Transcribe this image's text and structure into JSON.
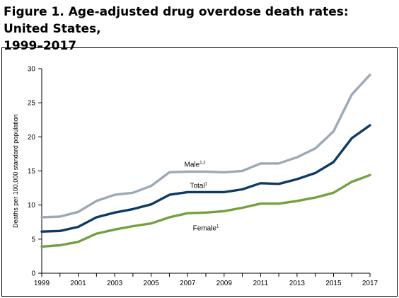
{
  "figure": {
    "title_line1": "Figure 1. Age-adjusted drug overdose death rates: United States,",
    "title_line2": "1999–2017"
  },
  "chart_data": {
    "type": "line",
    "title": "Figure 1. Age-adjusted drug overdose death rates: United States, 1999–2017",
    "xlabel": "",
    "ylabel": "Deaths per 100,000 standard population",
    "x": [
      1999,
      2000,
      2001,
      2002,
      2003,
      2004,
      2005,
      2006,
      2007,
      2008,
      2009,
      2010,
      2011,
      2012,
      2013,
      2014,
      2015,
      2016,
      2017
    ],
    "x_tick_labels": [
      "1999",
      "2001",
      "2003",
      "2005",
      "2007",
      "2009",
      "2011",
      "2013",
      "2015",
      "2017"
    ],
    "xlim": [
      1999,
      2017
    ],
    "y_ticks": [
      0,
      5,
      10,
      15,
      20,
      25,
      30
    ],
    "ylim": [
      0,
      30
    ],
    "grid": false,
    "legend": "inline labels",
    "series": [
      {
        "name": "Male",
        "name_sup": "1,2",
        "color": "#9BA9B7",
        "values": [
          8.2,
          8.3,
          9.0,
          10.6,
          11.5,
          11.8,
          12.8,
          14.8,
          14.9,
          14.9,
          14.8,
          15.0,
          16.1,
          16.1,
          17.0,
          18.3,
          20.8,
          26.2,
          29.1
        ]
      },
      {
        "name": "Total",
        "name_sup": "1",
        "color": "#0E3A63",
        "values": [
          6.1,
          6.2,
          6.8,
          8.2,
          8.9,
          9.4,
          10.1,
          11.5,
          11.9,
          11.9,
          11.9,
          12.3,
          13.2,
          13.1,
          13.8,
          14.7,
          16.3,
          19.8,
          21.7
        ]
      },
      {
        "name": "Female",
        "name_sup": "1",
        "color": "#76A03F",
        "values": [
          3.9,
          4.1,
          4.6,
          5.8,
          6.4,
          6.9,
          7.3,
          8.2,
          8.8,
          8.9,
          9.1,
          9.6,
          10.2,
          10.2,
          10.6,
          11.1,
          11.8,
          13.4,
          14.4
        ]
      }
    ]
  }
}
